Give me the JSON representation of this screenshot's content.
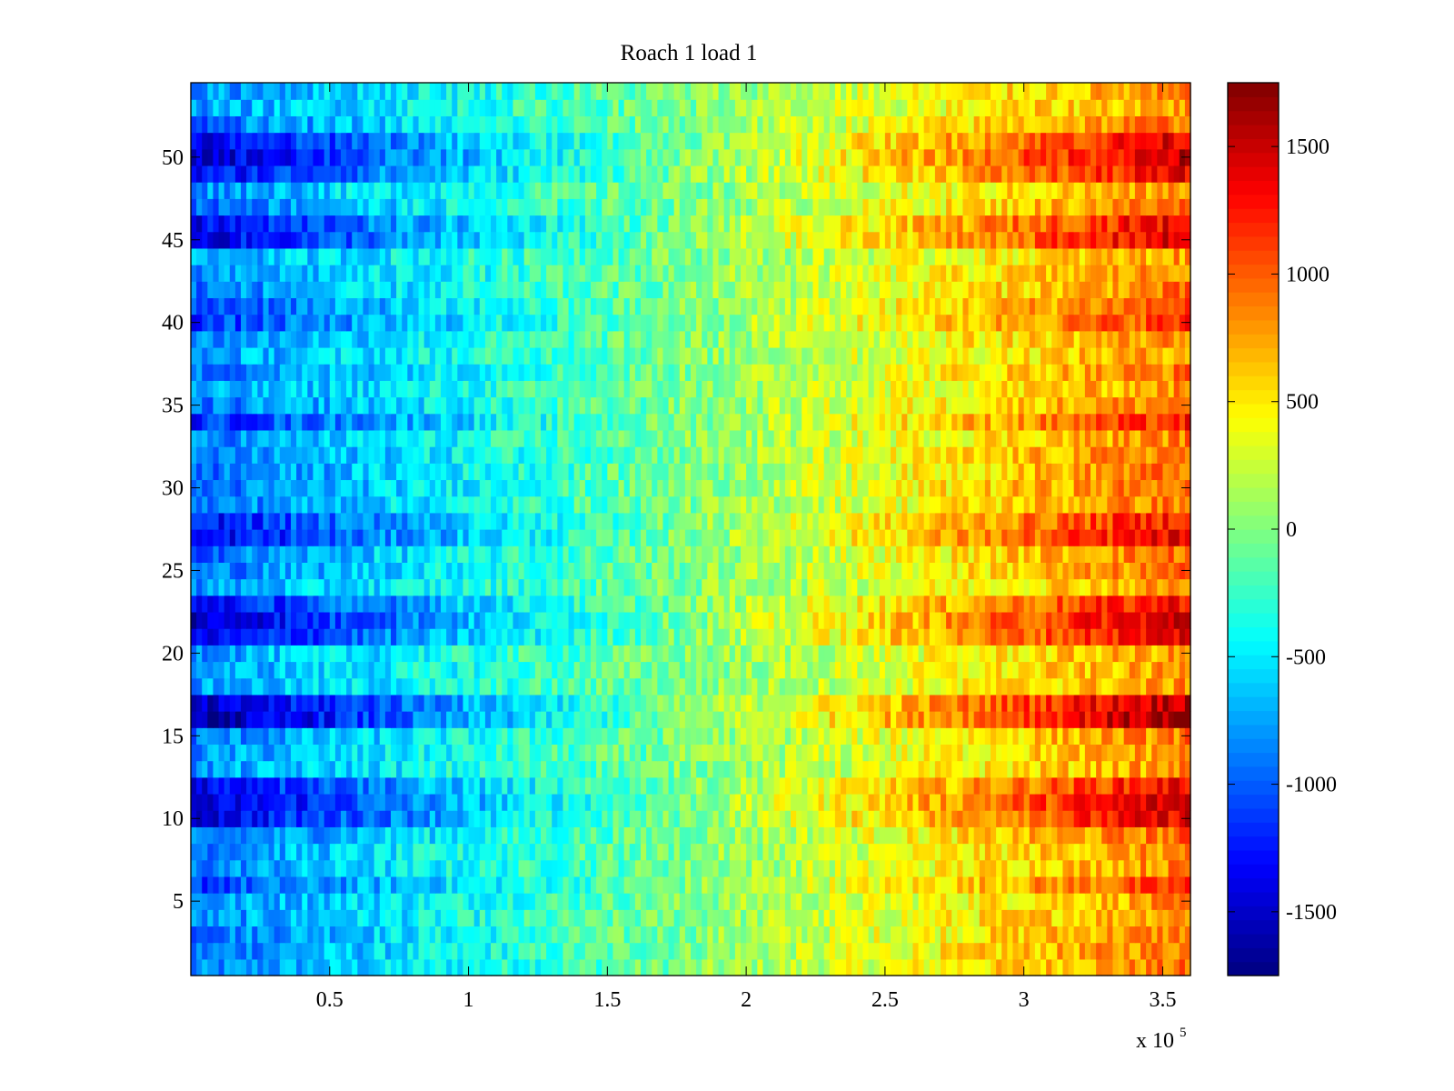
{
  "chart_data": {
    "type": "heatmap",
    "title": "Roach 1 load 1",
    "xlabel": "",
    "ylabel": "",
    "x_exponent_label": "x 10",
    "x_exponent_power": "5",
    "xlim": [
      0,
      360000
    ],
    "ylim": [
      0.5,
      54.5
    ],
    "x_ticks": [
      {
        "value": 50000,
        "label": "0.5"
      },
      {
        "value": 100000,
        "label": "1"
      },
      {
        "value": 150000,
        "label": "1.5"
      },
      {
        "value": 200000,
        "label": "2"
      },
      {
        "value": 250000,
        "label": "2.5"
      },
      {
        "value": 300000,
        "label": "3"
      },
      {
        "value": 350000,
        "label": "3.5"
      }
    ],
    "y_ticks": [
      {
        "value": 5,
        "label": "5"
      },
      {
        "value": 10,
        "label": "10"
      },
      {
        "value": 15,
        "label": "15"
      },
      {
        "value": 20,
        "label": "20"
      },
      {
        "value": 25,
        "label": "25"
      },
      {
        "value": 30,
        "label": "30"
      },
      {
        "value": 35,
        "label": "35"
      },
      {
        "value": 40,
        "label": "40"
      },
      {
        "value": 45,
        "label": "45"
      },
      {
        "value": 50,
        "label": "50"
      }
    ],
    "rows": 54,
    "x_columns": 180,
    "value_trend": {
      "description": "Values increase left to right; strongly negative bands at the left and strongly positive at the right",
      "left_value": -900,
      "mid_value": 0,
      "right_value": 900
    },
    "emphasized_rows": [
      {
        "row": 6,
        "amplitude": 1.25
      },
      {
        "row": 10,
        "amplitude": 1.6
      },
      {
        "row": 11,
        "amplitude": 1.7
      },
      {
        "row": 12,
        "amplitude": 1.5
      },
      {
        "row": 16,
        "amplitude": 1.9
      },
      {
        "row": 17,
        "amplitude": 1.8
      },
      {
        "row": 21,
        "amplitude": 1.6
      },
      {
        "row": 22,
        "amplitude": 1.7
      },
      {
        "row": 23,
        "amplitude": 1.5
      },
      {
        "row": 27,
        "amplitude": 1.55
      },
      {
        "row": 28,
        "amplitude": 1.45
      },
      {
        "row": 34,
        "amplitude": 1.35
      },
      {
        "row": 40,
        "amplitude": 1.3
      },
      {
        "row": 41,
        "amplitude": 1.2
      },
      {
        "row": 45,
        "amplitude": 1.6
      },
      {
        "row": 46,
        "amplitude": 1.55
      },
      {
        "row": 49,
        "amplitude": 1.5
      },
      {
        "row": 50,
        "amplitude": 1.7
      },
      {
        "row": 51,
        "amplitude": 1.6
      }
    ],
    "colorbar": {
      "colormap": "jet",
      "range": [
        -1750,
        1750
      ],
      "ticks": [
        {
          "value": -1500,
          "label": "-1500"
        },
        {
          "value": -1000,
          "label": "-1000"
        },
        {
          "value": -500,
          "label": "-500"
        },
        {
          "value": 0,
          "label": "0"
        },
        {
          "value": 500,
          "label": "500"
        },
        {
          "value": 1000,
          "label": "1000"
        },
        {
          "value": 1500,
          "label": "1500"
        }
      ]
    }
  }
}
